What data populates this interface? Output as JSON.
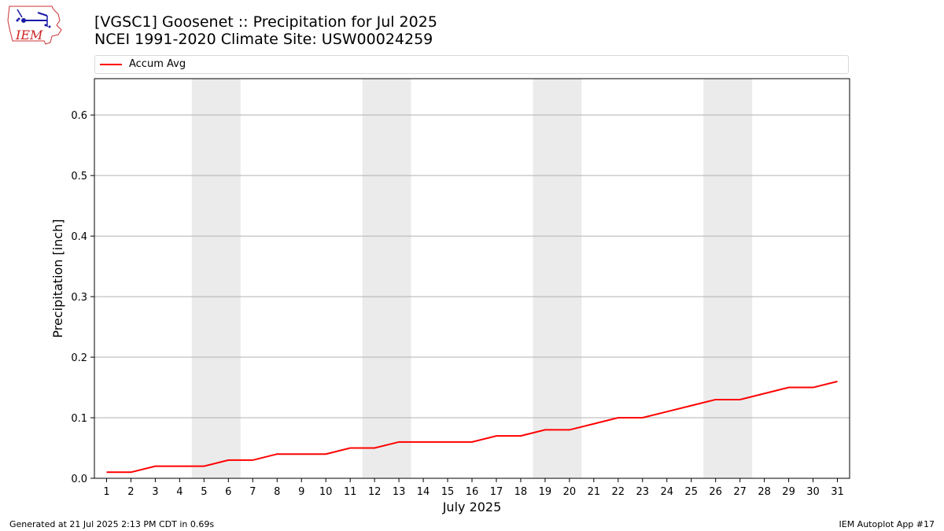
{
  "header": {
    "title_line1": "[VGSC1] Goosenet :: Precipitation for Jul 2025",
    "title_line2": "NCEI 1991-2020 Climate Site: USW00024259"
  },
  "logo": {
    "text": "IEM",
    "icon": "iem-iowa-logo-icon"
  },
  "legend": {
    "label": "Accum Avg",
    "color": "#ff0000"
  },
  "footer": {
    "left": "Generated at 21 Jul 2025 2:13 PM CDT in 0.69s",
    "right": "IEM Autoplot App #17"
  },
  "chart_data": {
    "type": "line",
    "title": "[VGSC1] Goosenet :: Precipitation for Jul 2025",
    "subtitle": "NCEI 1991-2020 Climate Site: USW00024259",
    "xlabel": "July 2025",
    "ylabel": "Precipitation [inch]",
    "x": [
      1,
      2,
      3,
      4,
      5,
      6,
      7,
      8,
      9,
      10,
      11,
      12,
      13,
      14,
      15,
      16,
      17,
      18,
      19,
      20,
      21,
      22,
      23,
      24,
      25,
      26,
      27,
      28,
      29,
      30,
      31
    ],
    "x_ticks": [
      "1",
      "2",
      "3",
      "4",
      "5",
      "6",
      "7",
      "8",
      "9",
      "10",
      "11",
      "12",
      "13",
      "14",
      "15",
      "16",
      "17",
      "18",
      "19",
      "20",
      "21",
      "22",
      "23",
      "24",
      "25",
      "26",
      "27",
      "28",
      "29",
      "30",
      "31"
    ],
    "xlim": [
      0.5,
      31.5
    ],
    "ylim": [
      0,
      0.66
    ],
    "y_ticks": [
      "0.0",
      "0.1",
      "0.2",
      "0.3",
      "0.4",
      "0.5",
      "0.6"
    ],
    "y_tick_values": [
      0,
      0.1,
      0.2,
      0.3,
      0.4,
      0.5,
      0.6
    ],
    "grid": "horizontal",
    "legend_position": "top",
    "weekend_bands": [
      [
        4.5,
        6.5
      ],
      [
        11.5,
        13.5
      ],
      [
        18.5,
        20.5
      ],
      [
        25.5,
        27.5
      ]
    ],
    "band_color": "#ebebeb",
    "series": [
      {
        "name": "Accum Avg",
        "color": "#ff0000",
        "values": [
          0.01,
          0.01,
          0.02,
          0.02,
          0.02,
          0.03,
          0.03,
          0.04,
          0.04,
          0.04,
          0.05,
          0.05,
          0.06,
          0.06,
          0.06,
          0.06,
          0.07,
          0.07,
          0.08,
          0.08,
          0.09,
          0.1,
          0.1,
          0.11,
          0.12,
          0.13,
          0.13,
          0.14,
          0.15,
          0.15,
          0.16
        ]
      }
    ]
  }
}
